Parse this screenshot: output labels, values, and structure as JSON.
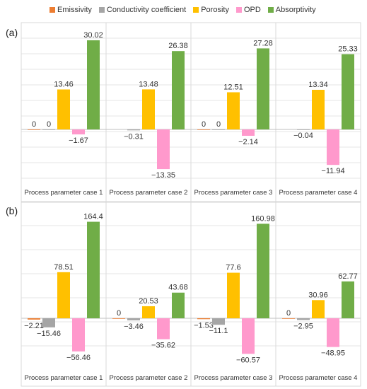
{
  "legend": [
    {
      "name": "Emissivity",
      "color": "#ED7D31"
    },
    {
      "name": "Conductivity coefficient",
      "color": "#A5A5A5"
    },
    {
      "name": "Porosity",
      "color": "#FFC000"
    },
    {
      "name": "OPD",
      "color": "#FF99CC"
    },
    {
      "name": "Absorptivity",
      "color": "#70AD47"
    }
  ],
  "chart_data": [
    {
      "type": "bar",
      "panel_label": "(a)",
      "categories": [
        "Process parameter case 1",
        "Process parameter case 2",
        "Process parameter case 3",
        "Process parameter case 4"
      ],
      "ylim": [
        -20,
        35
      ],
      "series": [
        {
          "name": "Emissivity",
          "values": [
            0,
            null,
            0,
            null
          ],
          "labels": [
            "0",
            "",
            "0",
            ""
          ]
        },
        {
          "name": "Conductivity coefficient",
          "values": [
            0,
            -0.31,
            0,
            -0.04
          ],
          "labels": [
            "0",
            "−0.31",
            "0",
            "−0.04"
          ]
        },
        {
          "name": "Porosity",
          "values": [
            13.46,
            13.48,
            12.51,
            13.34
          ],
          "labels": [
            "13.46",
            "13.48",
            "12.51",
            "13.34"
          ]
        },
        {
          "name": "OPD",
          "values": [
            -1.67,
            -13.35,
            -2.14,
            -11.94
          ],
          "labels": [
            "−1.67",
            "−13.35",
            "−2.14",
            "−11.94"
          ]
        },
        {
          "name": "Absorptivity",
          "values": [
            30.02,
            26.38,
            27.28,
            25.33
          ],
          "labels": [
            "30.02",
            "26.38",
            "27.28",
            "25.33"
          ]
        }
      ],
      "extra_labels": [
        "0",
        "",
        "",
        "0"
      ]
    },
    {
      "type": "bar",
      "panel_label": "(b)",
      "categories": [
        "Process parameter case 1",
        "Process parameter case 2",
        "Process parameter case 3",
        "Process parameter case 4"
      ],
      "ylim": [
        -80,
        180
      ],
      "series": [
        {
          "name": "Emissivity",
          "values": [
            -2.21,
            0,
            -1.53,
            0
          ],
          "labels": [
            "−2.21",
            "0",
            "−1.53",
            "0"
          ]
        },
        {
          "name": "Conductivity coefficient",
          "values": [
            -15.46,
            -3.46,
            -11.1,
            -2.95
          ],
          "labels": [
            "−15.46",
            "−3.46",
            "−11.1",
            "−2.95"
          ]
        },
        {
          "name": "Porosity",
          "values": [
            78.51,
            20.53,
            77.6,
            30.96
          ],
          "labels": [
            "78.51",
            "20.53",
            "77.6",
            "30.96"
          ]
        },
        {
          "name": "OPD",
          "values": [
            -56.46,
            -35.62,
            -60.57,
            -48.95
          ],
          "labels": [
            "−56.46",
            "−35.62",
            "−60.57",
            "−48.95"
          ]
        },
        {
          "name": "Absorptivity",
          "values": [
            164.4,
            43.68,
            160.98,
            62.77
          ],
          "labels": [
            "164.4",
            "43.68",
            "160.98",
            "62.77"
          ]
        }
      ]
    }
  ]
}
